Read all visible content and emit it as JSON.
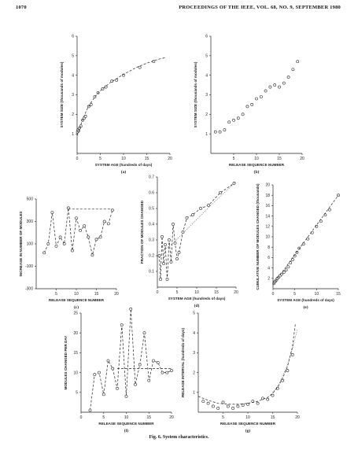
{
  "header": {
    "page_number": "1070",
    "journal": "PROCEEDINGS OF THE IEEE, VOL. 68, NO. 9, SEPTEMBER 1980"
  },
  "caption": "Fig. 6.  System characteristics.",
  "chart_data": [
    {
      "id": "a",
      "panel_label": "(a)",
      "type": "scatter",
      "xlabel": "SYSTEM AGE (hundreds of days)",
      "ylabel": "SYSTEM SIZE (thousands of modules)",
      "xlim": [
        0,
        20
      ],
      "ylim": [
        0,
        6
      ],
      "xticks": [
        0,
        5,
        10,
        15,
        20
      ],
      "yticks": [
        1,
        2,
        3,
        4,
        5,
        6
      ],
      "series": [
        {
          "mode": "points",
          "x": [
            0.1,
            0.2,
            0.3,
            0.5,
            0.8,
            1.2,
            1.5,
            1.8,
            2.5,
            3.0,
            3.8,
            4.5,
            5.5,
            6.2,
            7.5,
            8.5,
            10.0,
            13.5,
            16.5
          ],
          "y": [
            1.1,
            1.2,
            1.15,
            1.3,
            1.4,
            1.7,
            1.8,
            1.9,
            2.4,
            2.5,
            2.9,
            3.1,
            3.3,
            3.4,
            3.7,
            3.75,
            4.0,
            4.4,
            4.7
          ]
        },
        {
          "mode": "dashed",
          "x": [
            0,
            1,
            2,
            3,
            4,
            5,
            6,
            7,
            8,
            9,
            10,
            11,
            12,
            13,
            14,
            15,
            16,
            17,
            18,
            19
          ],
          "y": [
            0.9,
            1.6,
            2.2,
            2.6,
            2.95,
            3.2,
            3.4,
            3.6,
            3.75,
            3.9,
            4.05,
            4.17,
            4.3,
            4.42,
            4.52,
            4.62,
            4.7,
            4.78,
            4.85,
            4.9
          ]
        }
      ]
    },
    {
      "id": "b",
      "panel_label": "(b)",
      "type": "scatter",
      "xlabel": "RELEASE SEQUENCE NUMBER",
      "ylabel": "SYSTEM SIZE (thousands of modules)",
      "xlim": [
        0,
        20
      ],
      "ylim": [
        0,
        6
      ],
      "xticks": [
        5,
        10,
        15,
        20
      ],
      "yticks": [
        1,
        2,
        3,
        4,
        5,
        6
      ],
      "series": [
        {
          "mode": "points",
          "x": [
            1,
            2,
            3,
            4,
            5,
            6,
            7,
            8,
            9,
            10,
            11,
            12,
            13,
            14,
            15,
            16,
            17,
            18,
            19
          ],
          "y": [
            1.1,
            1.1,
            1.2,
            1.6,
            1.7,
            1.8,
            2.0,
            2.4,
            2.5,
            2.8,
            2.9,
            3.2,
            3.4,
            3.5,
            3.4,
            3.6,
            3.9,
            4.3,
            4.7
          ]
        }
      ]
    },
    {
      "id": "c",
      "panel_label": "(c)",
      "type": "line",
      "xlabel": "RELEASE SEQUENCE NUMBER",
      "ylabel": "INCREASE IN NUMBER OF MODULES",
      "xlim": [
        0,
        20
      ],
      "ylim": [
        -300,
        500
      ],
      "xticks": [
        5,
        10,
        15,
        20
      ],
      "yticks": [
        -300,
        -100,
        100,
        300,
        500
      ],
      "series": [
        {
          "mode": "dashed-points",
          "x": [
            2,
            3,
            4,
            5,
            6,
            7,
            8,
            9,
            10,
            11,
            12,
            13,
            14,
            15,
            16,
            17,
            18,
            19
          ],
          "y": [
            20,
            100,
            380,
            80,
            160,
            100,
            420,
            40,
            330,
            220,
            260,
            160,
            0,
            140,
            160,
            300,
            280,
            400
          ]
        },
        {
          "mode": "dashed",
          "x": [
            8,
            19
          ],
          "y": [
            410,
            410
          ]
        }
      ]
    },
    {
      "id": "d",
      "panel_label": "(d)",
      "type": "line",
      "xlabel": "SYSTEM AGE (hundreds of days)",
      "ylabel": "FRACTION OF MODULES CHANGED",
      "xlim": [
        0,
        20
      ],
      "ylim": [
        0,
        0.7
      ],
      "xticks": [
        0,
        5,
        10,
        15,
        20
      ],
      "yticks": [
        0.1,
        0.2,
        0.3,
        0.4,
        0.5,
        0.6,
        0.7
      ],
      "series": [
        {
          "mode": "dashed-points",
          "x": [
            0.5,
            0.8,
            1.2,
            1.6,
            2.0,
            2.5,
            3.0,
            3.5,
            4.0,
            4.5,
            5.0,
            5.5,
            6.5,
            7.5,
            9.0,
            11.0,
            13.0,
            16.0,
            19.5
          ],
          "y": [
            0.2,
            0.05,
            0.32,
            0.15,
            0.27,
            0.05,
            0.3,
            0.16,
            0.4,
            0.28,
            0.18,
            0.22,
            0.35,
            0.44,
            0.46,
            0.5,
            0.52,
            0.6,
            0.66
          ]
        },
        {
          "mode": "dotted",
          "x": [
            0,
            2,
            4,
            6,
            8,
            10,
            14,
            20
          ],
          "y": [
            0.22,
            0.24,
            0.28,
            0.33,
            0.38,
            0.43,
            0.53,
            0.67
          ]
        }
      ]
    },
    {
      "id": "e",
      "panel_label": "(e)",
      "type": "scatter",
      "xlabel": "SYSTEM AGE (hundreds of days)",
      "ylabel": "CUMULATIVE NUMBER OF MODULES CHANGED (thousands)",
      "xlim": [
        0,
        15
      ],
      "ylim": [
        0,
        20
      ],
      "xticks": [
        0,
        5,
        10,
        15
      ],
      "yticks": [
        2,
        4,
        6,
        8,
        10,
        12,
        14,
        16,
        18,
        20
      ],
      "series": [
        {
          "mode": "points",
          "x": [
            0.2,
            0.4,
            0.6,
            0.8,
            1.0,
            1.3,
            1.6,
            2.0,
            2.5,
            3.0,
            3.5,
            4.0,
            4.5,
            5.0,
            5.5,
            6.0,
            7.0,
            8.0,
            9.0,
            10.0,
            11.0,
            12.0,
            13.0,
            15.0
          ],
          "y": [
            1.0,
            1.3,
            1.5,
            1.7,
            2.0,
            2.2,
            2.5,
            2.8,
            3.2,
            3.6,
            4.2,
            5.0,
            5.6,
            6.3,
            7.0,
            7.8,
            8.6,
            9.6,
            10.8,
            12.0,
            13.0,
            14.2,
            15.2,
            18.0
          ]
        },
        {
          "mode": "dashed",
          "x": [
            0,
            15
          ],
          "y": [
            0.8,
            18.0
          ]
        }
      ]
    },
    {
      "id": "f",
      "panel_label": "(f)",
      "type": "line",
      "xlabel": "RELEASE SEQUENCE NUMBER",
      "ylabel": "MODULES CHANGED PER DAY",
      "xlim": [
        0,
        20
      ],
      "ylim": [
        0,
        25
      ],
      "xticks": [
        0,
        5,
        10,
        15,
        20
      ],
      "yticks": [
        5,
        10,
        15,
        20,
        25
      ],
      "series": [
        {
          "mode": "dashed-points",
          "x": [
            2,
            3,
            4,
            5,
            6,
            7,
            8,
            9,
            10,
            11,
            12,
            13,
            14,
            15,
            16,
            17,
            18,
            19,
            20
          ],
          "y": [
            0.5,
            9.5,
            10,
            4.5,
            13,
            11,
            6,
            22,
            4,
            26,
            7,
            12,
            20,
            8,
            13,
            12.5,
            10,
            10,
            10.5
          ]
        },
        {
          "mode": "dashed",
          "x": [
            8,
            20
          ],
          "y": [
            11,
            11
          ]
        }
      ]
    },
    {
      "id": "g",
      "panel_label": "(g)",
      "type": "scatter",
      "xlabel": "RELEASE SEQUENCE NUMBER",
      "ylabel": "RELEASE INTERVAL (hundreds of days)",
      "xlim": [
        0,
        20
      ],
      "ylim": [
        0,
        5
      ],
      "xticks": [
        5,
        10,
        15,
        20
      ],
      "yticks": [
        1,
        2,
        3,
        4,
        5
      ],
      "series": [
        {
          "mode": "points",
          "x": [
            1,
            2,
            3,
            4,
            5,
            6,
            7,
            8,
            9,
            10,
            11,
            12,
            13,
            14,
            15,
            16,
            17,
            18,
            19
          ],
          "y": [
            0.55,
            0.45,
            0.3,
            0.2,
            0.5,
            0.3,
            0.2,
            0.3,
            0.35,
            0.4,
            0.55,
            0.45,
            0.7,
            0.65,
            0.85,
            1.2,
            1.6,
            2.1,
            2.9
          ]
        },
        {
          "mode": "dashed",
          "x": [
            0,
            2,
            4,
            6,
            8,
            10,
            12,
            14,
            15,
            16,
            17,
            18,
            19,
            19.6
          ],
          "y": [
            0.8,
            0.6,
            0.45,
            0.4,
            0.4,
            0.45,
            0.55,
            0.75,
            0.95,
            1.25,
            1.7,
            2.3,
            3.3,
            4.5
          ]
        },
        {
          "mode": "dotted",
          "x": [
            15,
            16,
            17,
            18,
            19,
            20
          ],
          "y": [
            1.0,
            1.3,
            1.8,
            2.4,
            3.2,
            4.2
          ]
        }
      ]
    }
  ]
}
